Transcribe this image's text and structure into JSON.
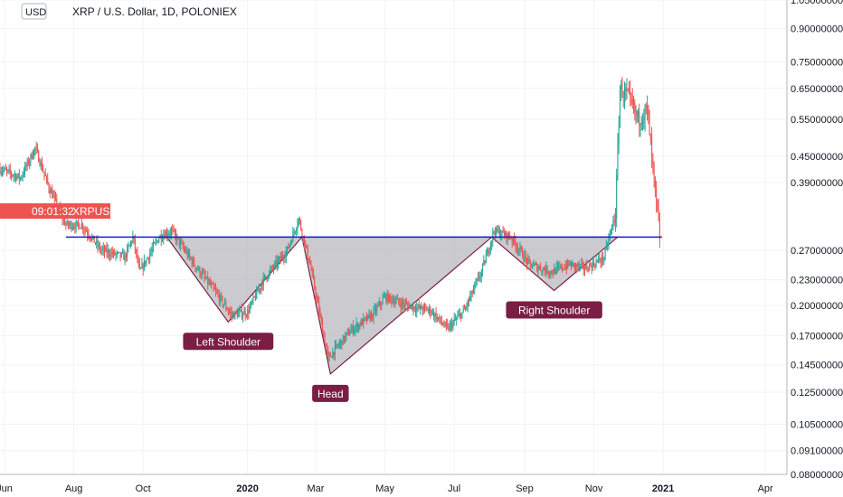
{
  "header": {
    "currency_badge": "USD",
    "title": "XRP / U.S. Dollar, 1D, POLONIEX"
  },
  "price_tag": {
    "countdown": "09:01:32",
    "ticker": "XRPUSD"
  },
  "colors": {
    "up": "#26a69a",
    "down": "#ef5350",
    "neckline": "#1a1adb",
    "pattern_fill": "#b9b9bf",
    "pattern_stroke": "#7a1e45",
    "label_bg": "#7a1e45",
    "price_tag_bg": "#ef5350"
  },
  "chart_data": {
    "type": "candlestick",
    "title": "XRP / U.S. Dollar, 1D, POLONIEX",
    "y_scale": "log",
    "ylim": [
      0.08,
      1.05
    ],
    "y_ticks": [
      "1.05000000",
      "0.90000000",
      "0.75000000",
      "0.65000000",
      "0.55000000",
      "0.45000000",
      "0.39000000",
      "0.27000000",
      "0.23000000",
      "0.20000000",
      "0.17000000",
      "0.14500000",
      "0.12500000",
      "0.10500000",
      "0.09100000",
      "0.08000000"
    ],
    "y_tick_values": [
      1.05,
      0.9,
      0.75,
      0.65,
      0.55,
      0.45,
      0.39,
      0.27,
      0.23,
      0.2,
      0.17,
      0.145,
      0.125,
      0.105,
      0.091,
      0.08
    ],
    "xlim": [
      "2019-05-28",
      "2021-04-20"
    ],
    "x_ticks": [
      "Jun",
      "Aug",
      "Oct",
      "2020",
      "Mar",
      "May",
      "Jul",
      "Sep",
      "Nov",
      "2021",
      "Apr"
    ],
    "x_tick_dates": [
      "2019-06-01",
      "2019-08-01",
      "2019-10-01",
      "2020-01-01",
      "2020-03-01",
      "2020-05-01",
      "2020-07-01",
      "2020-09-01",
      "2020-11-01",
      "2021-01-01",
      "2021-04-01"
    ],
    "price_path": [
      [
        "2019-05-28",
        0.42
      ],
      [
        "2019-06-15",
        0.4
      ],
      [
        "2019-06-28",
        0.47
      ],
      [
        "2019-07-10",
        0.38
      ],
      [
        "2019-07-25",
        0.31
      ],
      [
        "2019-08-08",
        0.31
      ],
      [
        "2019-08-25",
        0.27
      ],
      [
        "2019-09-15",
        0.26
      ],
      [
        "2019-09-22",
        0.29
      ],
      [
        "2019-09-28",
        0.24
      ],
      [
        "2019-10-15",
        0.29
      ],
      [
        "2019-10-26",
        0.3
      ],
      [
        "2019-11-15",
        0.25
      ],
      [
        "2019-12-01",
        0.22
      ],
      [
        "2019-12-18",
        0.19
      ],
      [
        "2020-01-01",
        0.193
      ],
      [
        "2020-01-15",
        0.23
      ],
      [
        "2020-02-05",
        0.27
      ],
      [
        "2020-02-15",
        0.32
      ],
      [
        "2020-02-25",
        0.25
      ],
      [
        "2020-03-12",
        0.15
      ],
      [
        "2020-03-20",
        0.16
      ],
      [
        "2020-04-01",
        0.175
      ],
      [
        "2020-04-20",
        0.19
      ],
      [
        "2020-05-01",
        0.21
      ],
      [
        "2020-05-20",
        0.2
      ],
      [
        "2020-06-10",
        0.195
      ],
      [
        "2020-06-25",
        0.176
      ],
      [
        "2020-07-10",
        0.195
      ],
      [
        "2020-07-25",
        0.24
      ],
      [
        "2020-08-05",
        0.3
      ],
      [
        "2020-08-20",
        0.29
      ],
      [
        "2020-09-05",
        0.25
      ],
      [
        "2020-09-25",
        0.24
      ],
      [
        "2020-10-10",
        0.25
      ],
      [
        "2020-10-25",
        0.245
      ],
      [
        "2020-11-10",
        0.26
      ],
      [
        "2020-11-20",
        0.33
      ],
      [
        "2020-11-24",
        0.65
      ],
      [
        "2020-12-01",
        0.62
      ],
      [
        "2020-12-10",
        0.55
      ],
      [
        "2020-12-18",
        0.58
      ],
      [
        "2020-12-24",
        0.39
      ],
      [
        "2020-12-29",
        0.29
      ]
    ],
    "neckline": {
      "x0": "2019-07-25",
      "x1": "2020-12-31",
      "y": 0.29
    },
    "pattern": [
      {
        "name": "Left Shoulder",
        "points": [
          [
            "2019-10-22",
            0.29
          ],
          [
            "2019-12-15",
            0.183
          ],
          [
            "2020-02-18",
            0.29
          ]
        ]
      },
      {
        "name": "Head",
        "points": [
          [
            "2020-02-18",
            0.29
          ],
          [
            "2020-03-14",
            0.138
          ],
          [
            "2020-08-03",
            0.29
          ]
        ]
      },
      {
        "name": "Right Shoulder",
        "points": [
          [
            "2020-08-03",
            0.29
          ],
          [
            "2020-09-27",
            0.217
          ],
          [
            "2020-11-22",
            0.29
          ]
        ]
      }
    ]
  }
}
